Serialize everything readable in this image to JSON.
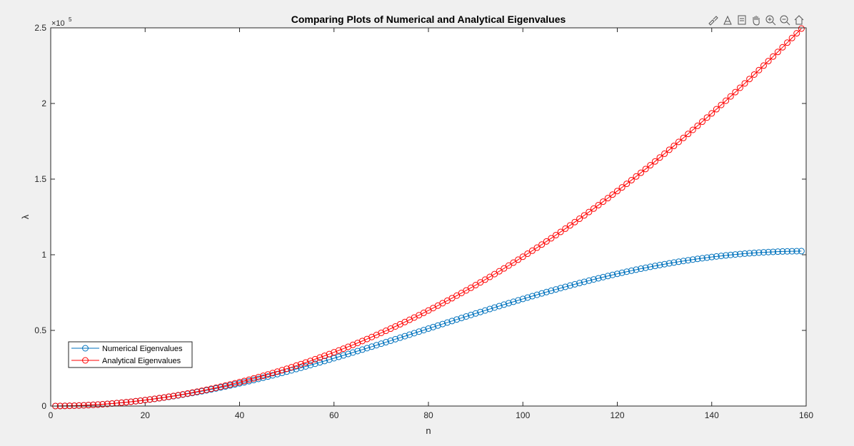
{
  "chart_data": {
    "type": "line",
    "title": "Comparing Plots of Numerical and Analytical Eigenvalues",
    "xlabel": "n",
    "ylabel": "λ",
    "xlim": [
      0,
      160
    ],
    "ylim": [
      0,
      250000
    ],
    "xticks": [
      "0",
      "20",
      "40",
      "60",
      "80",
      "100",
      "120",
      "140",
      "160"
    ],
    "yticks": [
      "0",
      "0.5",
      "1",
      "1.5",
      "2",
      "2.5"
    ],
    "y_exponent_label": "×10",
    "y_exponent_value": "5",
    "grid": false,
    "legend_position": "lower-left",
    "series": [
      {
        "name": "Numerical Eigenvalues",
        "color": "#0072BD",
        "marker": "circle",
        "n_start": 1,
        "n_end": 159,
        "formula": "lambda_n = 102400 * sin^2(pi*n/320)",
        "sample_points": {
          "x": [
            1,
            20,
            40,
            60,
            80,
            100,
            120,
            140,
            159
          ],
          "y": [
            10,
            3928,
            15024,
            31710,
            51200,
            70690,
            87376,
            98472,
            102390
          ]
        }
      },
      {
        "name": "Analytical Eigenvalues",
        "color": "#FF0000",
        "marker": "circle",
        "n_start": 1,
        "n_end": 159,
        "formula": "lambda_n = 10 * n^2 (approx pi^2 n^2)",
        "sample_points": {
          "x": [
            1,
            20,
            40,
            60,
            80,
            100,
            120,
            140,
            159
          ],
          "y": [
            10,
            3948,
            15791,
            35531,
            63165,
            98696,
            142122,
            193444,
            249507
          ]
        }
      }
    ]
  },
  "toolbar": {
    "icons": [
      "brush-icon",
      "datatip-icon",
      "restore-view-icon",
      "pan-icon",
      "zoom-in-icon",
      "zoom-out-icon",
      "home-icon"
    ]
  }
}
